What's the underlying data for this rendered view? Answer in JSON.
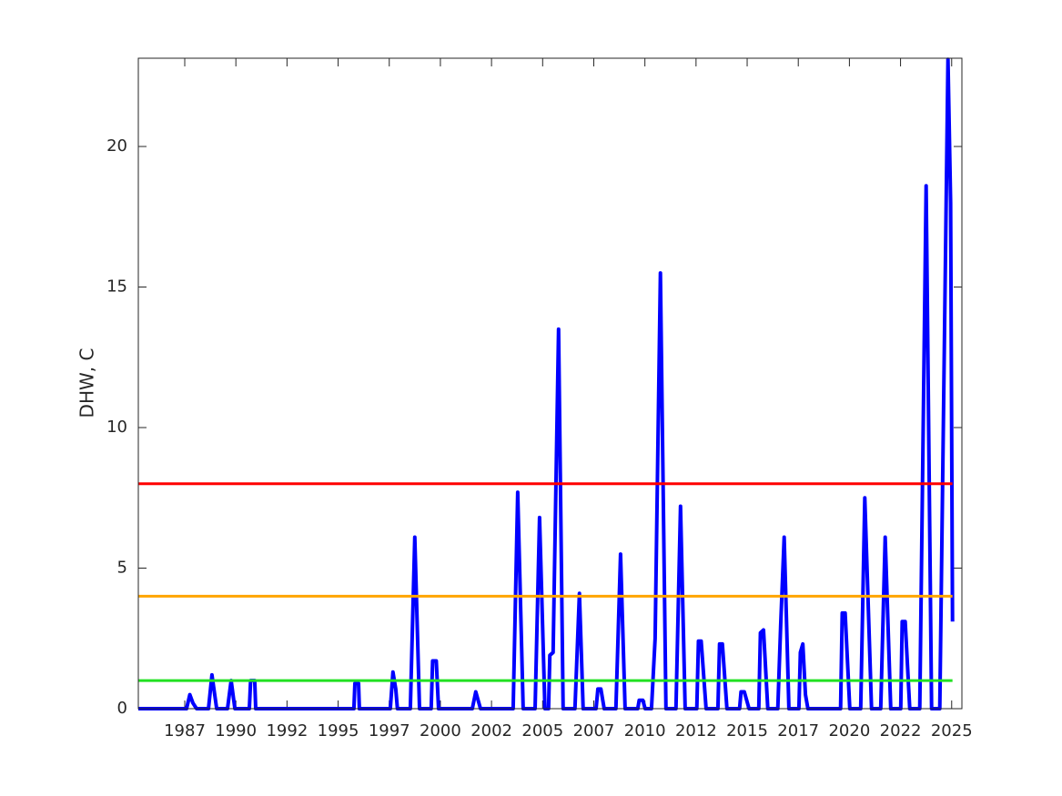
{
  "chart_data": {
    "type": "line",
    "ylabel": "DHW, C",
    "xlim": [
      1985.23,
      2025.5
    ],
    "xticks": [
      {
        "value": 1987.5,
        "label": "1987"
      },
      1990,
      {
        "value": 1992.5,
        "label": "1992"
      },
      1995,
      {
        "value": 1997.5,
        "label": "1997"
      },
      2000,
      {
        "value": 2002.5,
        "label": "2002"
      },
      2005,
      {
        "value": 2007.5,
        "label": "2007"
      },
      2010,
      {
        "value": 2012.5,
        "label": "2012"
      },
      2015,
      {
        "value": 2017.5,
        "label": "2017"
      },
      2020,
      {
        "value": 2022.5,
        "label": "2022"
      },
      2025
    ],
    "ylim": [
      0,
      23.14
    ],
    "yticks": [
      0,
      5,
      10,
      15,
      20
    ],
    "grid": false,
    "thresholds": [
      {
        "value": 1,
        "color": "#22e022"
      },
      {
        "value": 4,
        "color": "#ffa500"
      },
      {
        "value": 8,
        "color": "#ff0000"
      }
    ],
    "x": [
      1985.23,
      1987.59,
      1987.75,
      1987.9,
      1988.08,
      1988.66,
      1988.83,
      1989.06,
      1989.59,
      1989.77,
      1989.95,
      1990.66,
      1990.72,
      1990.92,
      1990.97,
      1995.77,
      1995.82,
      1996.0,
      1996.04,
      1997.55,
      1997.68,
      1997.82,
      1997.9,
      1998.53,
      1998.75,
      1998.98,
      1999.55,
      1999.62,
      1999.8,
      1999.91,
      2001.56,
      2001.73,
      2001.96,
      2003.56,
      2003.78,
      2004.05,
      2004.63,
      2004.85,
      2005.11,
      2005.29,
      2005.35,
      2005.51,
      2005.78,
      2006.0,
      2006.58,
      2006.8,
      2006.98,
      2007.61,
      2007.7,
      2007.85,
      2008.01,
      2008.58,
      2008.81,
      2009.03,
      2009.65,
      2009.72,
      2009.9,
      2010.01,
      2010.32,
      2010.5,
      2010.76,
      2011.03,
      2011.52,
      2011.74,
      2011.97,
      2012.54,
      2012.62,
      2012.75,
      2012.99,
      2013.57,
      2013.65,
      2013.79,
      2014.01,
      2014.63,
      2014.7,
      2014.86,
      2015.09,
      2015.57,
      2015.65,
      2015.8,
      2016.01,
      2016.5,
      2016.64,
      2016.81,
      2016.92,
      2017.04,
      2017.53,
      2017.6,
      2017.72,
      2017.85,
      2017.97,
      2019.57,
      2019.65,
      2019.79,
      2020.02,
      2020.55,
      2020.75,
      2021.08,
      2021.53,
      2021.75,
      2022.02,
      2022.51,
      2022.58,
      2022.73,
      2022.95,
      2023.44,
      2023.75,
      2024.02,
      2024.42,
      2024.82,
      2024.95,
      2025.04
    ],
    "series": [
      {
        "color": "#0000ff",
        "values": [
          0,
          0,
          0.5,
          0.2,
          0,
          0,
          1.2,
          0,
          0,
          1.0,
          0,
          0,
          1.0,
          1.0,
          0,
          0,
          0.9,
          0.9,
          0,
          0,
          1.3,
          0.7,
          0,
          0,
          6.1,
          0,
          0,
          1.7,
          1.7,
          0,
          0,
          0.6,
          0,
          0,
          7.7,
          0,
          0,
          6.8,
          0,
          0,
          1.9,
          2.0,
          13.5,
          0,
          0,
          4.1,
          0,
          0,
          0.7,
          0.7,
          0,
          0,
          5.5,
          0,
          0,
          0.3,
          0.3,
          0,
          0,
          2.5,
          15.5,
          0,
          0,
          7.2,
          0,
          0,
          2.4,
          2.4,
          0,
          0,
          2.3,
          2.3,
          0,
          0,
          0.6,
          0.6,
          0,
          0,
          2.7,
          2.8,
          0,
          0,
          3.0,
          6.1,
          3.2,
          0,
          0,
          2.0,
          2.3,
          0.5,
          0,
          0,
          3.4,
          3.4,
          0,
          0,
          7.5,
          0,
          0,
          6.1,
          0,
          0,
          3.1,
          3.1,
          0,
          0,
          18.6,
          0,
          0,
          23.1,
          18,
          3.1
        ]
      }
    ]
  }
}
